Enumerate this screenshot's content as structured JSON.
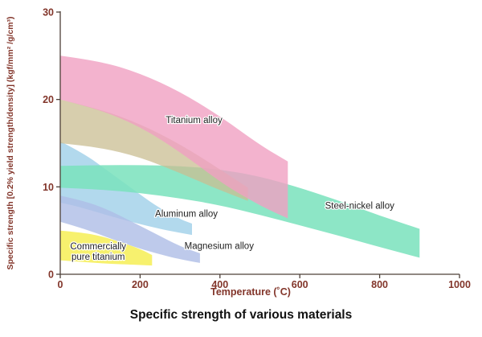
{
  "page": {
    "background": "#ffffff"
  },
  "chart_data": {
    "type": "area",
    "title": "Specific strength of various materials",
    "xlabel": "Temperature (˚C)",
    "ylabel": "Specific strength [0.2% yield strength/density] (kgf/mm² /g/cm³)",
    "xlim": [
      0,
      1000
    ],
    "ylim": [
      0,
      30
    ],
    "x_ticks": [
      0,
      200,
      400,
      600,
      800,
      1000
    ],
    "y_ticks": [
      0,
      10,
      20,
      30
    ],
    "grid": false,
    "legend_position": "none (labels drawn inline on bands)",
    "colors": {
      "axis": "#4d4038",
      "tick_labels": "#82352a",
      "band_labels": "#1f1f1f",
      "caption": "#111111",
      "titanium_alloy": "#f0a0c2",
      "steel_nickel_alloy": "#79e2bc",
      "aluminum_alloy": "#9fd0e8",
      "magnesium_alloy": "#aebde6",
      "commercially_pure_titanium": "#f6ef5e",
      "unlabeled_overlap_band": "#c9bd92"
    },
    "bands": [
      {
        "name": "aluminum-alloy",
        "label": "Aluminum alloy",
        "label_pos": [
          316,
          6.6
        ],
        "color": "#9fd0e8",
        "opacity": 0.8,
        "upper": [
          [
            0,
            15.2
          ],
          [
            60,
            13.8
          ],
          [
            120,
            11.8
          ],
          [
            180,
            9.8
          ],
          [
            240,
            7.8
          ],
          [
            300,
            6.3
          ],
          [
            330,
            5.8
          ]
        ],
        "lower": [
          [
            0,
            8.2
          ],
          [
            40,
            7.8
          ],
          [
            100,
            7.0
          ],
          [
            160,
            6.2
          ],
          [
            220,
            5.5
          ],
          [
            280,
            4.9
          ],
          [
            330,
            4.5
          ]
        ]
      },
      {
        "name": "magnesium-alloy",
        "label": "Magnesium alloy",
        "label_pos": [
          398,
          2.9
        ],
        "color": "#aebde6",
        "opacity": 0.8,
        "upper": [
          [
            0,
            9.0
          ],
          [
            60,
            8.4
          ],
          [
            120,
            7.4
          ],
          [
            180,
            6.0
          ],
          [
            240,
            4.6
          ],
          [
            300,
            3.2
          ],
          [
            350,
            2.4
          ]
        ],
        "lower": [
          [
            0,
            6.0
          ],
          [
            60,
            5.2
          ],
          [
            120,
            4.2
          ],
          [
            180,
            3.2
          ],
          [
            240,
            2.4
          ],
          [
            300,
            1.7
          ],
          [
            350,
            1.3
          ]
        ]
      },
      {
        "name": "steel-nickel-alloy",
        "label": "Steel-nickel alloy",
        "label_pos": [
          750,
          7.5
        ],
        "color": "#79e2bc",
        "opacity": 0.85,
        "upper": [
          [
            0,
            12.4
          ],
          [
            100,
            12.5
          ],
          [
            200,
            12.5
          ],
          [
            300,
            12.4
          ],
          [
            400,
            12.0
          ],
          [
            500,
            11.2
          ],
          [
            600,
            9.9
          ],
          [
            700,
            8.4
          ],
          [
            800,
            6.7
          ],
          [
            900,
            5.2
          ]
        ],
        "lower": [
          [
            0,
            9.9
          ],
          [
            100,
            9.7
          ],
          [
            200,
            9.3
          ],
          [
            300,
            8.7
          ],
          [
            400,
            7.9
          ],
          [
            500,
            6.8
          ],
          [
            600,
            5.6
          ],
          [
            700,
            4.4
          ],
          [
            800,
            3.1
          ],
          [
            900,
            1.9
          ]
        ]
      },
      {
        "name": "unlabeled-overlap-band",
        "label": "",
        "label_pos": [
          0,
          0
        ],
        "color": "#c9bd92",
        "opacity": 0.75,
        "upper": [
          [
            0,
            20.0
          ],
          [
            100,
            18.9
          ],
          [
            200,
            17.2
          ],
          [
            300,
            14.9
          ],
          [
            400,
            12.0
          ],
          [
            470,
            9.9
          ]
        ],
        "lower": [
          [
            0,
            15.0
          ],
          [
            100,
            14.5
          ],
          [
            200,
            13.4
          ],
          [
            300,
            11.6
          ],
          [
            400,
            9.6
          ],
          [
            470,
            8.4
          ]
        ]
      },
      {
        "name": "commercially-pure-titanium",
        "label": "Commercially\npure titanium",
        "label_pos": [
          95,
          2.85
        ],
        "color": "#f6ef5e",
        "opacity": 0.9,
        "upper": [
          [
            0,
            5.0
          ],
          [
            50,
            4.8
          ],
          [
            100,
            4.4
          ],
          [
            150,
            3.7
          ],
          [
            200,
            2.9
          ],
          [
            230,
            2.2
          ]
        ],
        "lower": [
          [
            0,
            1.6
          ],
          [
            60,
            1.4
          ],
          [
            120,
            1.2
          ],
          [
            180,
            1.1
          ],
          [
            230,
            1.0
          ]
        ]
      },
      {
        "name": "titanium-alloy",
        "label": "Titanium alloy",
        "label_pos": [
          335,
          17.3
        ],
        "color": "#f0a0c2",
        "opacity": 0.8,
        "upper": [
          [
            0,
            25.0
          ],
          [
            100,
            24.4
          ],
          [
            200,
            23.0
          ],
          [
            300,
            20.9
          ],
          [
            400,
            18.1
          ],
          [
            500,
            14.8
          ],
          [
            570,
            12.9
          ]
        ],
        "lower": [
          [
            0,
            20.0
          ],
          [
            100,
            18.8
          ],
          [
            200,
            16.9
          ],
          [
            300,
            14.0
          ],
          [
            400,
            10.6
          ],
          [
            460,
            8.9
          ],
          [
            520,
            7.4
          ],
          [
            570,
            6.4
          ]
        ]
      }
    ]
  }
}
